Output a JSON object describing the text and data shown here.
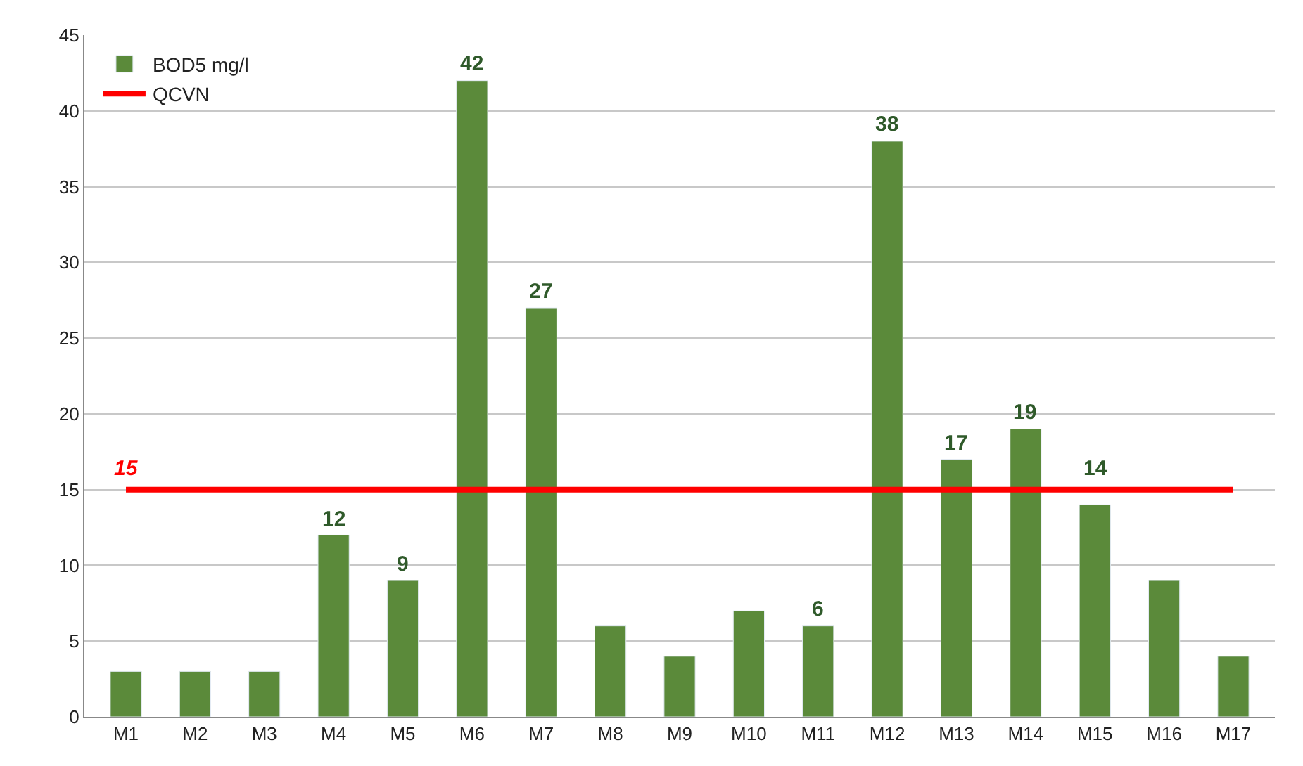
{
  "chart_data": {
    "type": "bar",
    "categories": [
      "M1",
      "M2",
      "M3",
      "M4",
      "M5",
      "M6",
      "M7",
      "M8",
      "M9",
      "M10",
      "M11",
      "M12",
      "M13",
      "M14",
      "M15",
      "M16",
      "M17"
    ],
    "series": [
      {
        "name": "BOD5 mg/l",
        "color": "#5b8a3a",
        "values": [
          3,
          3,
          3,
          12,
          9,
          42,
          27,
          6,
          4,
          7,
          6,
          38,
          17,
          19,
          14,
          9,
          4
        ],
        "value_labels": [
          null,
          null,
          null,
          "12",
          "9",
          "42",
          "27",
          null,
          null,
          null,
          "6",
          "38",
          "17",
          "19",
          "14",
          null,
          null
        ]
      },
      {
        "name": "QCVN",
        "type": "line",
        "color": "#ff0000",
        "values": [
          15,
          15,
          15,
          15,
          15,
          15,
          15,
          15,
          15,
          15,
          15,
          15,
          15,
          15,
          15,
          15,
          15
        ]
      }
    ],
    "annotations": [
      {
        "text": "15",
        "x": "M1",
        "y": 15
      }
    ],
    "ylim": [
      0,
      45
    ],
    "yticks": [
      0,
      5,
      10,
      15,
      20,
      25,
      30,
      35,
      40,
      45
    ],
    "grid": "y",
    "legend": "top left"
  }
}
